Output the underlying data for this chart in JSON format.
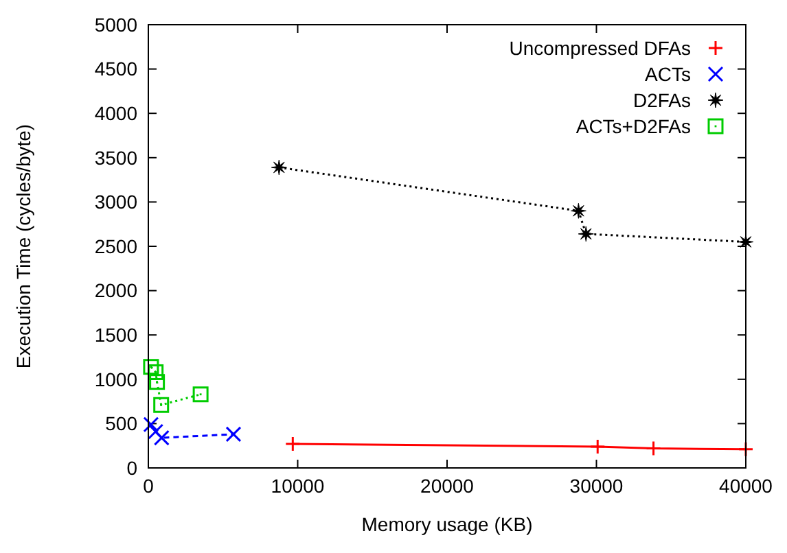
{
  "chart_data": {
    "type": "line",
    "xlabel": "Memory usage (KB)",
    "ylabel": "Execution Time (cycles/byte)",
    "xlim": [
      0,
      40000
    ],
    "ylim": [
      0,
      5000
    ],
    "xticks": [
      0,
      10000,
      20000,
      30000,
      40000
    ],
    "yticks": [
      0,
      500,
      1000,
      1500,
      2000,
      2500,
      3000,
      3500,
      4000,
      4500,
      5000
    ],
    "grid": false,
    "legend": "top right",
    "series": [
      {
        "name": "Uncompressed DFAs",
        "color": "#ff0000",
        "marker": "plus",
        "line_style": "solid",
        "x": [
          9670,
          30080,
          33820,
          40000
        ],
        "values": [
          270,
          240,
          220,
          210
        ]
      },
      {
        "name": "ACTs",
        "color": "#0000ff",
        "marker": "cross",
        "line_style": "dashed",
        "x": [
          180,
          490,
          890,
          5700
        ],
        "values": [
          490,
          410,
          340,
          380
        ]
      },
      {
        "name": "D2FAs",
        "color": "#000000",
        "marker": "star",
        "line_style": "dotted",
        "x": [
          8750,
          28800,
          29300,
          40000
        ],
        "values": [
          3390,
          2900,
          2640,
          2550
        ]
      },
      {
        "name": "ACTs+D2FAs",
        "color": "#00cc00",
        "marker": "square",
        "line_style": "dotted",
        "x": [
          180,
          490,
          580,
          860,
          3500
        ],
        "values": [
          1140,
          1080,
          970,
          710,
          830
        ]
      }
    ]
  }
}
